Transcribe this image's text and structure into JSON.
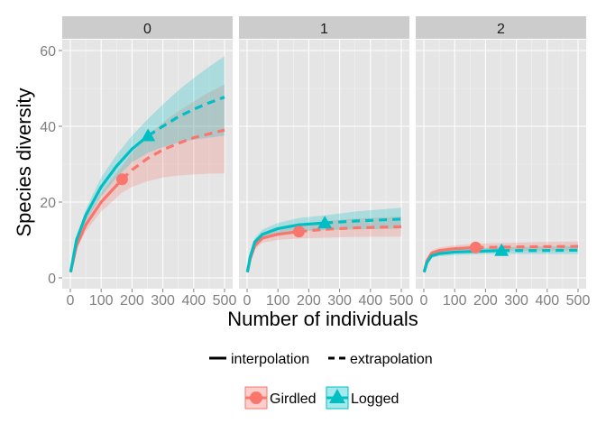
{
  "chart_data": {
    "type": "line",
    "xlabel": "Number of individuals",
    "ylabel": "Species diversity",
    "xlim": [
      0,
      500
    ],
    "ylim": [
      0,
      60
    ],
    "x_ticks": [
      0,
      100,
      200,
      300,
      400,
      500
    ],
    "y_ticks": [
      0,
      20,
      40,
      60
    ],
    "grid": true,
    "panels": [
      {
        "label": "0",
        "series": [
          {
            "name": "Girdled",
            "color": "#f8766d",
            "observed": {
              "x": 168,
              "y": 26
            },
            "points": [
              [
                1,
                1.5
              ],
              [
                20,
                8.5
              ],
              [
                50,
                14
              ],
              [
                100,
                20
              ],
              [
                168,
                26
              ],
              [
                200,
                28.5
              ],
              [
                250,
                31.5
              ],
              [
                300,
                33.8
              ],
              [
                350,
                35.5
              ],
              [
                400,
                37
              ],
              [
                450,
                38
              ],
              [
                500,
                39
              ]
            ],
            "band_low": [
              [
                1,
                1
              ],
              [
                20,
                7.5
              ],
              [
                50,
                12.3
              ],
              [
                100,
                17.5
              ],
              [
                168,
                22.5
              ],
              [
                200,
                24
              ],
              [
                250,
                25.5
              ],
              [
                300,
                26.5
              ],
              [
                350,
                27
              ],
              [
                400,
                27.3
              ],
              [
                450,
                27.5
              ],
              [
                500,
                27.6
              ]
            ],
            "band_high": [
              [
                1,
                2
              ],
              [
                20,
                9.5
              ],
              [
                50,
                15.7
              ],
              [
                100,
                22.5
              ],
              [
                168,
                29.5
              ],
              [
                200,
                33
              ],
              [
                250,
                37.5
              ],
              [
                300,
                41
              ],
              [
                350,
                44
              ],
              [
                400,
                46.5
              ],
              [
                450,
                49
              ],
              [
                500,
                51
              ]
            ]
          },
          {
            "name": "Logged",
            "color": "#00bfc4",
            "observed": {
              "x": 252,
              "y": 37.5
            },
            "points": [
              [
                1,
                1.5
              ],
              [
                20,
                10
              ],
              [
                50,
                16.5
              ],
              [
                100,
                24
              ],
              [
                150,
                29.5
              ],
              [
                200,
                34
              ],
              [
                252,
                37.5
              ],
              [
                300,
                40
              ],
              [
                350,
                42.5
              ],
              [
                400,
                44.5
              ],
              [
                450,
                46.2
              ],
              [
                500,
                47.7
              ]
            ],
            "band_low": [
              [
                1,
                1
              ],
              [
                20,
                9
              ],
              [
                50,
                15
              ],
              [
                100,
                21.5
              ],
              [
                150,
                26.5
              ],
              [
                200,
                30.5
              ],
              [
                252,
                33
              ],
              [
                300,
                34.5
              ],
              [
                350,
                35.7
              ],
              [
                400,
                36.5
              ],
              [
                450,
                37
              ],
              [
                500,
                37.5
              ]
            ],
            "band_high": [
              [
                1,
                2
              ],
              [
                20,
                11
              ],
              [
                50,
                18
              ],
              [
                100,
                26.5
              ],
              [
                150,
                32.5
              ],
              [
                200,
                37.5
              ],
              [
                252,
                42
              ],
              [
                300,
                45.7
              ],
              [
                350,
                49.5
              ],
              [
                400,
                52.7
              ],
              [
                450,
                55.7
              ],
              [
                500,
                58.5
              ]
            ]
          }
        ]
      },
      {
        "label": "1",
        "series": [
          {
            "name": "Girdled",
            "color": "#f8766d",
            "observed": {
              "x": 168,
              "y": 12.2
            },
            "points": [
              [
                1,
                1.5
              ],
              [
                10,
                5
              ],
              [
                25,
                8.5
              ],
              [
                50,
                10.5
              ],
              [
                100,
                11.5
              ],
              [
                168,
                12.2
              ],
              [
                250,
                12.8
              ],
              [
                350,
                13.2
              ],
              [
                500,
                13.5
              ]
            ],
            "band_low": [
              [
                1,
                1
              ],
              [
                10,
                4.5
              ],
              [
                25,
                7.5
              ],
              [
                50,
                9.3
              ],
              [
                100,
                10
              ],
              [
                168,
                10.4
              ],
              [
                250,
                10.6
              ],
              [
                350,
                10.8
              ],
              [
                500,
                10.9
              ]
            ],
            "band_high": [
              [
                1,
                2
              ],
              [
                10,
                5.5
              ],
              [
                25,
                9.5
              ],
              [
                50,
                11.7
              ],
              [
                100,
                13
              ],
              [
                168,
                14
              ],
              [
                250,
                15
              ],
              [
                350,
                15.6
              ],
              [
                500,
                16.2
              ]
            ]
          },
          {
            "name": "Logged",
            "color": "#00bfc4",
            "observed": {
              "x": 252,
              "y": 14.5
            },
            "points": [
              [
                1,
                1.5
              ],
              [
                10,
                5.5
              ],
              [
                25,
                9.5
              ],
              [
                50,
                11.5
              ],
              [
                100,
                13
              ],
              [
                168,
                14
              ],
              [
                252,
                14.5
              ],
              [
                350,
                15
              ],
              [
                500,
                15.5
              ]
            ],
            "band_low": [
              [
                1,
                1
              ],
              [
                10,
                5
              ],
              [
                25,
                8.5
              ],
              [
                50,
                10.3
              ],
              [
                100,
                11.7
              ],
              [
                168,
                12.3
              ],
              [
                252,
                12.6
              ],
              [
                350,
                12.8
              ],
              [
                500,
                13
              ]
            ],
            "band_high": [
              [
                1,
                2
              ],
              [
                10,
                6
              ],
              [
                25,
                10.5
              ],
              [
                50,
                12.7
              ],
              [
                100,
                14.5
              ],
              [
                168,
                15.8
              ],
              [
                252,
                16.5
              ],
              [
                350,
                17.5
              ],
              [
                500,
                18.5
              ]
            ]
          }
        ]
      },
      {
        "label": "2",
        "series": [
          {
            "name": "Girdled",
            "color": "#f8766d",
            "observed": {
              "x": 168,
              "y": 8
            },
            "points": [
              [
                1,
                1.5
              ],
              [
                10,
                4.5
              ],
              [
                25,
                6.5
              ],
              [
                50,
                7.2
              ],
              [
                100,
                7.7
              ],
              [
                168,
                8
              ],
              [
                250,
                8.1
              ],
              [
                350,
                8.2
              ],
              [
                500,
                8.3
              ]
            ],
            "band_low": [
              [
                1,
                1
              ],
              [
                10,
                4
              ],
              [
                25,
                5.8
              ],
              [
                50,
                6.4
              ],
              [
                100,
                6.8
              ],
              [
                168,
                7
              ],
              [
                250,
                7.1
              ],
              [
                350,
                7.1
              ],
              [
                500,
                7.2
              ]
            ],
            "band_high": [
              [
                1,
                2
              ],
              [
                10,
                5
              ],
              [
                25,
                7.2
              ],
              [
                50,
                8
              ],
              [
                100,
                8.6
              ],
              [
                168,
                9
              ],
              [
                250,
                9.2
              ],
              [
                350,
                9.4
              ],
              [
                500,
                9.6
              ]
            ]
          },
          {
            "name": "Logged",
            "color": "#00bfc4",
            "observed": {
              "x": 252,
              "y": 7.2
            },
            "points": [
              [
                1,
                1.5
              ],
              [
                10,
                4
              ],
              [
                25,
                5.8
              ],
              [
                50,
                6.4
              ],
              [
                100,
                6.8
              ],
              [
                168,
                7
              ],
              [
                252,
                7.2
              ],
              [
                350,
                7.2
              ],
              [
                500,
                7.3
              ]
            ],
            "band_low": [
              [
                1,
                1
              ],
              [
                10,
                3.5
              ],
              [
                25,
                5.2
              ],
              [
                50,
                5.7
              ],
              [
                100,
                6
              ],
              [
                168,
                6.2
              ],
              [
                252,
                6.3
              ],
              [
                350,
                6.3
              ],
              [
                500,
                6.3
              ]
            ],
            "band_high": [
              [
                1,
                2
              ],
              [
                10,
                4.5
              ],
              [
                25,
                6.4
              ],
              [
                50,
                7.1
              ],
              [
                100,
                7.6
              ],
              [
                168,
                7.9
              ],
              [
                252,
                8.1
              ],
              [
                350,
                8.2
              ],
              [
                500,
                8.4
              ]
            ]
          }
        ]
      }
    ],
    "line_types": [
      "interpolation",
      "extrapolation"
    ],
    "legend_position": "bottom"
  }
}
